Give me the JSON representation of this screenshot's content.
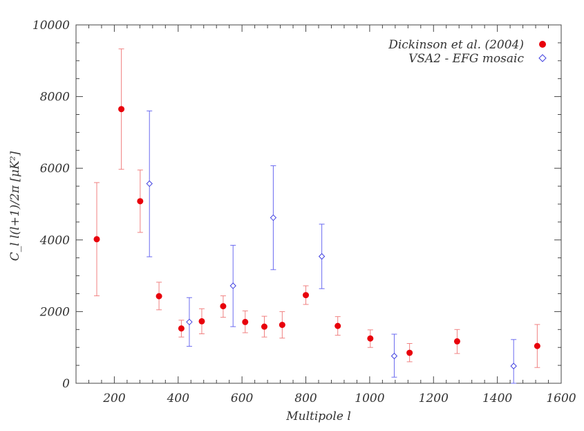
{
  "chart_data": {
    "type": "scatter",
    "title": "",
    "xlabel": "Multipole l",
    "ylabel": "C_l l(l+1)/2π [μK²]",
    "xlim": [
      80,
      1600
    ],
    "ylim": [
      0,
      10000
    ],
    "xticks": [
      200,
      400,
      600,
      800,
      1000,
      1200,
      1400,
      1600
    ],
    "yticks": [
      0,
      2000,
      4000,
      6000,
      8000,
      10000
    ],
    "grid": false,
    "legend_position": "top-right",
    "series": [
      {
        "name": "Dickinson et al. (2004)",
        "marker": "filled-circle",
        "color": "#e8000b",
        "error_color": "#f08080",
        "points": [
          {
            "x": 145,
            "y": 4020,
            "lo": 2440,
            "hi": 5600
          },
          {
            "x": 222,
            "y": 7650,
            "lo": 5970,
            "hi": 9330
          },
          {
            "x": 281,
            "y": 5080,
            "lo": 4210,
            "hi": 5950
          },
          {
            "x": 340,
            "y": 2430,
            "lo": 2050,
            "hi": 2820
          },
          {
            "x": 410,
            "y": 1530,
            "lo": 1290,
            "hi": 1760
          },
          {
            "x": 474,
            "y": 1730,
            "lo": 1380,
            "hi": 2080
          },
          {
            "x": 541,
            "y": 2150,
            "lo": 1840,
            "hi": 2440
          },
          {
            "x": 610,
            "y": 1710,
            "lo": 1410,
            "hi": 2020
          },
          {
            "x": 670,
            "y": 1580,
            "lo": 1290,
            "hi": 1870
          },
          {
            "x": 726,
            "y": 1630,
            "lo": 1260,
            "hi": 2000
          },
          {
            "x": 800,
            "y": 2460,
            "lo": 2200,
            "hi": 2720
          },
          {
            "x": 900,
            "y": 1600,
            "lo": 1340,
            "hi": 1860
          },
          {
            "x": 1002,
            "y": 1250,
            "lo": 1000,
            "hi": 1490
          },
          {
            "x": 1125,
            "y": 850,
            "lo": 600,
            "hi": 1110
          },
          {
            "x": 1274,
            "y": 1170,
            "lo": 830,
            "hi": 1500
          },
          {
            "x": 1525,
            "y": 1040,
            "lo": 440,
            "hi": 1640
          }
        ]
      },
      {
        "name": "VSA2 - EFG mosaic",
        "marker": "open-diamond",
        "color": "#4040e0",
        "error_color": "#6a6af0",
        "points": [
          {
            "x": 310,
            "y": 5570,
            "lo": 3530,
            "hi": 7600
          },
          {
            "x": 435,
            "y": 1710,
            "lo": 1030,
            "hi": 2390
          },
          {
            "x": 572,
            "y": 2720,
            "lo": 1580,
            "hi": 3850
          },
          {
            "x": 698,
            "y": 4620,
            "lo": 3170,
            "hi": 6070
          },
          {
            "x": 850,
            "y": 3540,
            "lo": 2640,
            "hi": 4440
          },
          {
            "x": 1077,
            "y": 760,
            "lo": 170,
            "hi": 1370
          },
          {
            "x": 1451,
            "y": 480,
            "lo": 0,
            "hi": 1220
          }
        ]
      }
    ]
  }
}
